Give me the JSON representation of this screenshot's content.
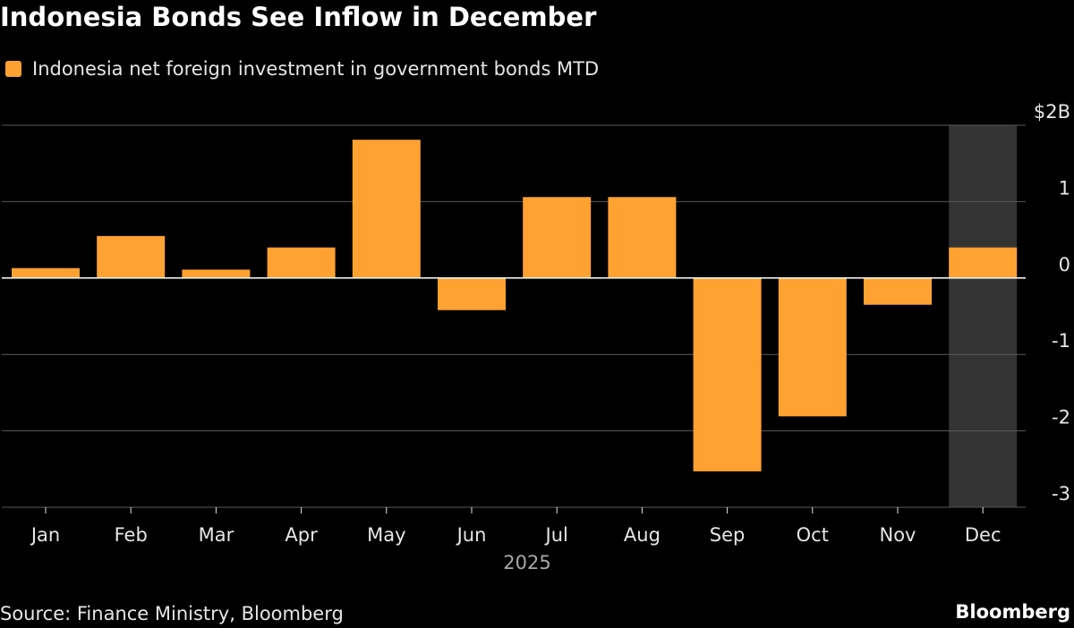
{
  "title": "Indonesia Bonds See Inflow in December",
  "source": "Source: Finance Ministry, Bloomberg",
  "brand": "Bloomberg",
  "colors": {
    "bar": "#ffa231",
    "background": "#000000",
    "gridline": "#5a5a5a",
    "zero_line": "#ffffff",
    "highlight_band": "#333333",
    "text": "#e6e6e6"
  },
  "chart_data": {
    "type": "bar",
    "title": "Indonesia Bonds See Inflow in December",
    "categories": [
      "Jan",
      "Feb",
      "Mar",
      "Apr",
      "May",
      "Jun",
      "Jul",
      "Aug",
      "Sep",
      "Oct",
      "Nov",
      "Dec"
    ],
    "series": [
      {
        "name": "Indonesia net foreign investment in government bonds MTD",
        "values": [
          0.13,
          0.55,
          0.11,
          0.4,
          1.81,
          -0.42,
          1.06,
          1.06,
          -2.53,
          -1.81,
          -0.35,
          0.4
        ]
      }
    ],
    "xlabel": "2025",
    "ylabel": "",
    "ylim": [
      -3,
      2
    ],
    "y_ticks": [
      {
        "value": 2,
        "label": "$2B"
      },
      {
        "value": 1,
        "label": "1"
      },
      {
        "value": 0,
        "label": "0"
      },
      {
        "value": -1,
        "label": "-1"
      },
      {
        "value": -2,
        "label": "-2"
      },
      {
        "value": -3,
        "label": "-3"
      }
    ],
    "highlighted_category": "Dec",
    "grid": true,
    "legend": "top-left",
    "y_axis_side": "right"
  }
}
